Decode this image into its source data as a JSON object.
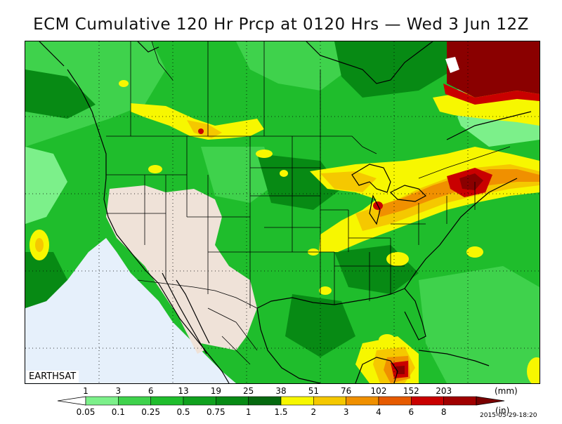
{
  "title": "ECM Cumulative 120 Hr Prcp at 0120 Hrs — Wed 3 Jun 12Z",
  "credit": "EARTHSAT",
  "timestamp": "2015-05-29-18:20",
  "legend": {
    "mm_unit": "(mm)",
    "in_unit": "(in)",
    "mm_labels": [
      "1",
      "3",
      "6",
      "13",
      "19",
      "25",
      "38",
      "51",
      "76",
      "102",
      "152",
      "203"
    ],
    "in_labels": [
      "0.05",
      "0.1",
      "0.25",
      "0.5",
      "0.75",
      "1",
      "1.5",
      "2",
      "3",
      "4",
      "6",
      "8"
    ],
    "colors": [
      "#ffffff",
      "#7cf08a",
      "#3fd24c",
      "#1fbd2c",
      "#10a11e",
      "#078a14",
      "#05690f",
      "#f7f700",
      "#f5c800",
      "#f09000",
      "#e65a00",
      "#c90000",
      "#a00000",
      "#7a0000"
    ]
  },
  "map_colors": {
    "dry_land": "#efe2d8",
    "dry_ocean": "#e6f0fb",
    "light_green": "#7cf08a",
    "green": "#3fd24c",
    "mid_green": "#1fbd2c",
    "dark_green": "#078a14",
    "yellow": "#f7f700",
    "gold": "#f5c800",
    "orange": "#f09000",
    "red": "#c90000",
    "dark_red": "#8a0000"
  }
}
